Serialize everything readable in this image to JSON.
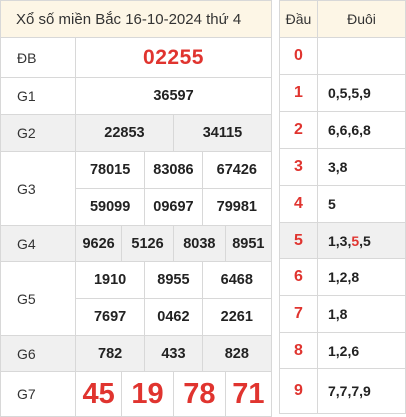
{
  "header": {
    "title": "Xổ số miền Bắc 16-10-2024 thứ 4"
  },
  "prizes": {
    "db": {
      "label": "ĐB",
      "value": "02255"
    },
    "g1": {
      "label": "G1",
      "values": [
        "36597"
      ]
    },
    "g2": {
      "label": "G2",
      "values": [
        "22853",
        "34115"
      ]
    },
    "g3": {
      "label": "G3",
      "values": [
        "78015",
        "83086",
        "67426",
        "59099",
        "09697",
        "79981"
      ]
    },
    "g4": {
      "label": "G4",
      "values": [
        "9626",
        "5126",
        "8038",
        "8951"
      ]
    },
    "g5": {
      "label": "G5",
      "values": [
        "1910",
        "8955",
        "6468",
        "7697",
        "0462",
        "2261"
      ]
    },
    "g6": {
      "label": "G6",
      "values": [
        "782",
        "433",
        "828"
      ]
    },
    "g7": {
      "label": "G7",
      "values": [
        "45",
        "19",
        "78",
        "71"
      ]
    }
  },
  "loto": {
    "head_label": "Đầu",
    "tail_label": "Đuôi",
    "rows": [
      {
        "head": "0",
        "tail": ""
      },
      {
        "head": "1",
        "tail": "0,5,5,9"
      },
      {
        "head": "2",
        "tail": "6,6,6,8"
      },
      {
        "head": "3",
        "tail": "3,8"
      },
      {
        "head": "4",
        "tail": "5"
      },
      {
        "head": "5",
        "tail_parts": [
          "1,3,",
          "5",
          ",5"
        ]
      },
      {
        "head": "6",
        "tail": "1,2,8"
      },
      {
        "head": "7",
        "tail": "1,8"
      },
      {
        "head": "8",
        "tail": "1,2,6"
      },
      {
        "head": "9",
        "tail": "7,7,7,9"
      }
    ]
  },
  "colors": {
    "accent_red": "#e0342f",
    "header_bg": "#fdf6e6",
    "shade_bg": "#f0f0f0"
  }
}
